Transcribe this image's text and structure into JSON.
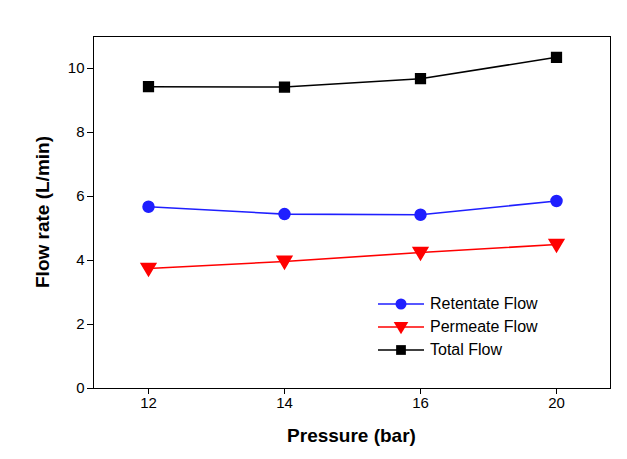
{
  "chart_data": {
    "type": "line",
    "x_label": "Pressure (bar)",
    "y_label": "Flow rate (L/min)",
    "categories": [
      "12",
      "14",
      "16",
      "20"
    ],
    "series": [
      {
        "name": "Retentate Flow",
        "color": "#1f1fff",
        "marker": "circle",
        "values": [
          5.68,
          5.45,
          5.43,
          5.86
        ]
      },
      {
        "name": "Permeate Flow",
        "color": "#ff0000",
        "marker": "triangle_down",
        "values": [
          3.75,
          3.97,
          4.25,
          4.5
        ]
      },
      {
        "name": "Total Flow",
        "color": "#000000",
        "marker": "square",
        "values": [
          9.43,
          9.42,
          9.68,
          10.35
        ]
      }
    ],
    "ylim": [
      0,
      11
    ],
    "yticks": [
      0,
      2,
      4,
      6,
      8,
      10
    ],
    "grid": false,
    "legend": "lower right"
  }
}
